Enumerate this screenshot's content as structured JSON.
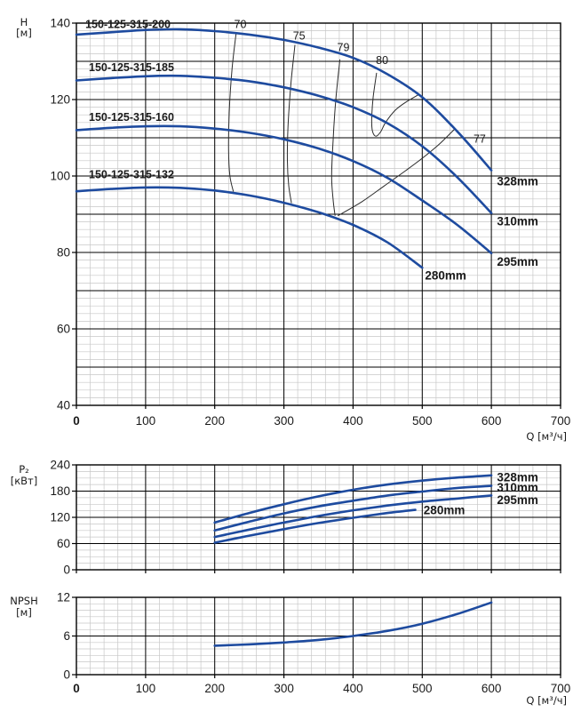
{
  "page": {
    "background": "#ffffff",
    "description": "Centrifugal pump performance curves 150-125-315"
  },
  "colors": {
    "curve": "#1e4b9f",
    "contour": "#2b2b2b",
    "grid_minor": "#c7c7c7",
    "grid_major": "#000000",
    "frame": "#000000",
    "text": "#1a1a1a"
  },
  "x_axis": {
    "unit_label": "Q [м³/ч]",
    "tick_labels": [
      "0",
      "100",
      "200",
      "300",
      "400",
      "500",
      "600",
      "700"
    ],
    "min": 0,
    "max": 700,
    "major_step": 100,
    "minor_step": 20,
    "bold_zero": true
  },
  "chart_data": [
    {
      "id": "head",
      "type": "line",
      "title": "",
      "ylabel": "H [м]",
      "xlabel": "Q [м³/ч]",
      "y_axis": {
        "name": "H",
        "unit": "[м]",
        "min": 40,
        "max": 140,
        "major_step": 10,
        "minor_step": 2,
        "tick_labels": [
          "140",
          "120",
          "100",
          "80",
          "60",
          "40"
        ],
        "tick_values": [
          140,
          120,
          100,
          80,
          60,
          40
        ]
      },
      "show_x_tick_labels": true,
      "series": [
        {
          "model": "150-125-315-200",
          "impeller": "328mm",
          "points": [
            [
              0,
              137
            ],
            [
              50,
              137.6
            ],
            [
              100,
              138.2
            ],
            [
              150,
              138.4
            ],
            [
              200,
              137.9
            ],
            [
              250,
              137
            ],
            [
              300,
              135.6
            ],
            [
              350,
              133.6
            ],
            [
              400,
              130.9
            ],
            [
              450,
              126.6
            ],
            [
              500,
              120.6
            ],
            [
              550,
              111.8
            ],
            [
              600,
              101.5
            ]
          ]
        },
        {
          "model": "150-125-315-185",
          "impeller": "310mm",
          "points": [
            [
              0,
              125
            ],
            [
              50,
              125.6
            ],
            [
              100,
              126.1
            ],
            [
              150,
              126.2
            ],
            [
              200,
              125.7
            ],
            [
              250,
              124.8
            ],
            [
              300,
              123.2
            ],
            [
              350,
              121
            ],
            [
              400,
              118
            ],
            [
              450,
              113.8
            ],
            [
              500,
              107.8
            ],
            [
              550,
              99.8
            ],
            [
              600,
              90.3
            ]
          ]
        },
        {
          "model": "150-125-315-160",
          "impeller": "295mm",
          "points": [
            [
              0,
              112
            ],
            [
              50,
              112.6
            ],
            [
              100,
              113
            ],
            [
              150,
              113
            ],
            [
              200,
              112.4
            ],
            [
              250,
              111.3
            ],
            [
              300,
              109.6
            ],
            [
              350,
              107.2
            ],
            [
              400,
              103.9
            ],
            [
              450,
              99.5
            ],
            [
              500,
              93.6
            ],
            [
              550,
              87.3
            ],
            [
              600,
              79.8
            ]
          ]
        },
        {
          "model": "150-125-315-132",
          "impeller": "280mm",
          "points": [
            [
              0,
              96
            ],
            [
              50,
              96.6
            ],
            [
              100,
              97
            ],
            [
              150,
              96.9
            ],
            [
              200,
              96.2
            ],
            [
              250,
              94.9
            ],
            [
              300,
              93
            ],
            [
              350,
              90.5
            ],
            [
              400,
              87.2
            ],
            [
              450,
              82.6
            ],
            [
              500,
              76
            ]
          ]
        }
      ],
      "series_labels": [
        {
          "text": "328mm",
          "q": 608,
          "v": 98.6
        },
        {
          "text": "310mm",
          "q": 608,
          "v": 88.1
        },
        {
          "text": "295mm",
          "q": 608,
          "v": 77.6
        },
        {
          "text": "280mm",
          "q": 504,
          "v": 74.0
        }
      ],
      "model_labels": [
        {
          "text": "150-125-315-200",
          "q": 13,
          "v": 139.6
        },
        {
          "text": "150-125-315-185",
          "q": 18,
          "v": 128.4
        },
        {
          "text": "150-125-315-160",
          "q": 18,
          "v": 115.4
        },
        {
          "text": "150-125-315-132",
          "q": 18,
          "v": 100.3
        }
      ],
      "contours": [
        {
          "label": "70",
          "label_q": 237,
          "label_v": 139.6,
          "points": [
            [
              231,
              137.6
            ],
            [
              225,
              128
            ],
            [
              221,
              117
            ],
            [
              220,
              107
            ],
            [
              222,
              100
            ],
            [
              227,
              95.9
            ]
          ]
        },
        {
          "label": "75",
          "label_q": 322,
          "label_v": 136.6,
          "points": [
            [
              316,
              134.3
            ],
            [
              310,
              124
            ],
            [
              306,
              113
            ],
            [
              305,
              104
            ],
            [
              307,
              97.5
            ],
            [
              311,
              92.9
            ]
          ]
        },
        {
          "label": "79",
          "label_q": 386,
          "label_v": 133.6,
          "points": [
            [
              381,
              130.5
            ],
            [
              375,
              120
            ],
            [
              371,
              109
            ],
            [
              369,
              100
            ],
            [
              371,
              94
            ],
            [
              374,
              89.6
            ]
          ]
        },
        {
          "label": "80",
          "label_q": 442,
          "label_v": 130.2,
          "points": [
            [
              434,
              127
            ],
            [
              429,
              120.5
            ],
            [
              427,
              115
            ],
            [
              428,
              111.8
            ],
            [
              433,
              110.4
            ],
            [
              440,
              111.6
            ],
            [
              447,
              114
            ],
            [
              461,
              117.2
            ],
            [
              477,
              119.4
            ],
            [
              494,
              121.2
            ]
          ]
        },
        {
          "label": "77",
          "label_q": 583,
          "label_v": 109.6,
          "points": [
            [
              378,
              89.6
            ],
            [
              413,
              93.3
            ],
            [
              445,
              97.4
            ],
            [
              476,
              101.4
            ],
            [
              502,
              104.9
            ],
            [
              525,
              108.4
            ],
            [
              547,
              112.3
            ]
          ]
        }
      ]
    },
    {
      "id": "power",
      "type": "line",
      "title": "",
      "ylabel": "P2 [кВт]",
      "xlabel": "Q [м³/ч]",
      "y_axis": {
        "name": "P₂",
        "unit": "[кВт]",
        "min": 0,
        "max": 240,
        "major_step": 60,
        "minor_step": 15,
        "tick_labels": [
          "240",
          "180",
          "120",
          "60",
          "0"
        ],
        "tick_values": [
          240,
          180,
          120,
          60,
          0
        ]
      },
      "show_x_tick_labels": false,
      "series": [
        {
          "model": "150-125-315-200",
          "impeller": "328mm",
          "points": [
            [
              200,
              108
            ],
            [
              250,
              130
            ],
            [
              300,
              150
            ],
            [
              350,
              168
            ],
            [
              400,
              183
            ],
            [
              450,
              195
            ],
            [
              500,
              204
            ],
            [
              550,
              211
            ],
            [
              600,
              216
            ]
          ]
        },
        {
          "model": "150-125-315-185",
          "impeller": "310mm",
          "points": [
            [
              200,
              90
            ],
            [
              250,
              110
            ],
            [
              300,
              129
            ],
            [
              350,
              145
            ],
            [
              400,
              158
            ],
            [
              450,
              170
            ],
            [
              500,
              179
            ],
            [
              550,
              187
            ],
            [
              600,
              192
            ]
          ]
        },
        {
          "model": "150-125-315-160",
          "impeller": "295mm",
          "points": [
            [
              200,
              75
            ],
            [
              250,
              92
            ],
            [
              300,
              108
            ],
            [
              350,
              123
            ],
            [
              400,
              136
            ],
            [
              450,
              147
            ],
            [
              500,
              156
            ],
            [
              550,
              163
            ],
            [
              600,
              170
            ]
          ]
        },
        {
          "model": "150-125-315-132",
          "impeller": "280mm",
          "points": [
            [
              200,
              62
            ],
            [
              250,
              78
            ],
            [
              300,
              93
            ],
            [
              350,
              107
            ],
            [
              400,
              119
            ],
            [
              450,
              130
            ],
            [
              490,
              137
            ]
          ]
        }
      ],
      "series_labels": [
        {
          "text": "328mm",
          "q": 608,
          "v": 212
        },
        {
          "text": "310mm",
          "q": 608,
          "v": 188
        },
        {
          "text": "295mm",
          "q": 608,
          "v": 160
        },
        {
          "text": "280mm",
          "q": 502,
          "v": 136
        }
      ],
      "model_labels": [],
      "contours": []
    },
    {
      "id": "npsh",
      "type": "line",
      "title": "",
      "ylabel": "NPSH [м]",
      "xlabel": "Q [м³/ч]",
      "y_axis": {
        "name": "NPSH",
        "unit": "[м]",
        "min": 0,
        "max": 12,
        "major_step": 6,
        "minor_step": 1,
        "tick_labels": [
          "12",
          "6",
          "0"
        ],
        "tick_values": [
          12,
          6,
          0
        ]
      },
      "show_x_tick_labels": true,
      "series": [
        {
          "model": "NPSH",
          "impeller": "",
          "points": [
            [
              200,
              4.5
            ],
            [
              250,
              4.7
            ],
            [
              300,
              5.0
            ],
            [
              350,
              5.4
            ],
            [
              400,
              6.0
            ],
            [
              450,
              6.8
            ],
            [
              500,
              7.9
            ],
            [
              550,
              9.4
            ],
            [
              600,
              11.2
            ]
          ]
        }
      ],
      "series_labels": [],
      "model_labels": [],
      "contours": []
    }
  ]
}
